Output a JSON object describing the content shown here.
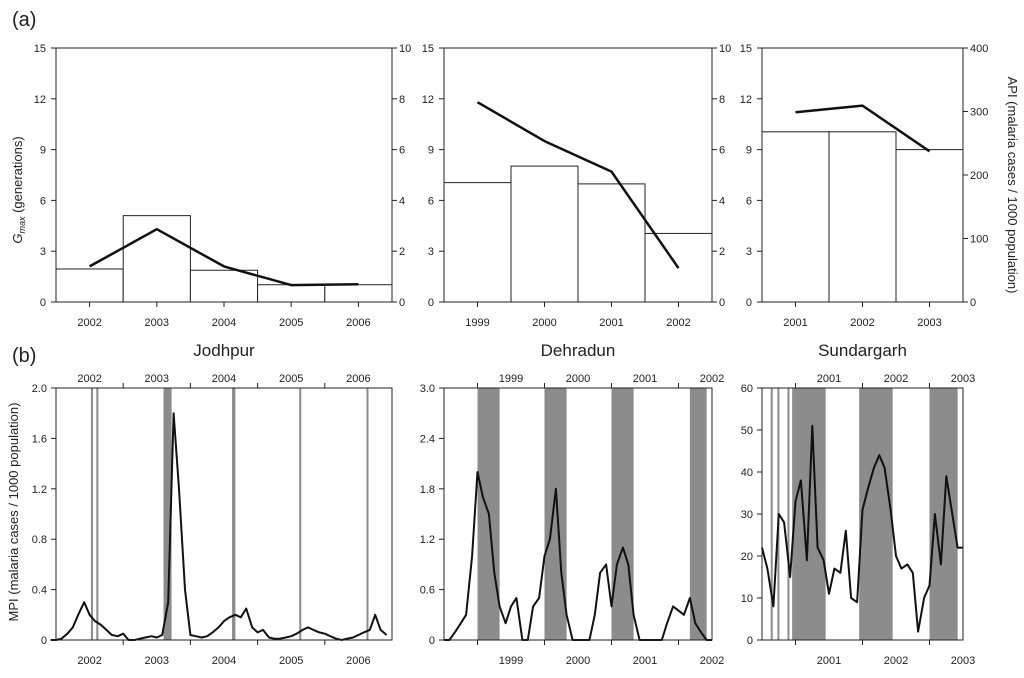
{
  "figure": {
    "panel_a_label": "(a)",
    "panel_b_label": "(b)",
    "gmax_label_main": "G",
    "gmax_label_sub": "max",
    "gmax_label_rest": " (generations)",
    "api_axis_label": "API (malaria cases / 1000 population)",
    "mpi_axis_label": "MPI (malaria cases / 1000 population)"
  },
  "chart_data": [
    {
      "id": "a-jodhpur",
      "type": "bar",
      "panel": "(a)",
      "categories": [
        "2002",
        "2003",
        "2004",
        "2005",
        "2006"
      ],
      "series": [
        {
          "name": "API (bars, right axis)",
          "axis": "right",
          "values": [
            1.3,
            3.4,
            1.25,
            0.68,
            0.68
          ]
        },
        {
          "name": "Gmax (line, left axis)",
          "axis": "left",
          "values": [
            2.1,
            4.3,
            2.1,
            1.0,
            1.05
          ]
        }
      ],
      "ylim_left": [
        0,
        15
      ],
      "yticks_left": [
        0,
        3,
        6,
        9,
        12,
        15
      ],
      "ylim_right": [
        0,
        10
      ],
      "yticks_right": [
        0,
        2,
        4,
        6,
        8,
        10
      ]
    },
    {
      "id": "a-dehradun",
      "type": "bar",
      "panel": "(a)",
      "categories": [
        "1999",
        "2000",
        "2001",
        "2002"
      ],
      "series": [
        {
          "name": "API (bars, right axis)",
          "axis": "right",
          "values": [
            4.7,
            5.35,
            4.65,
            2.7
          ]
        },
        {
          "name": "Gmax (line, left axis)",
          "axis": "left",
          "values": [
            11.8,
            9.5,
            7.7,
            2.0
          ]
        }
      ],
      "ylim_left": [
        0,
        15
      ],
      "yticks_left": [
        0,
        3,
        6,
        9,
        12,
        15
      ],
      "ylim_right": [
        0,
        10
      ],
      "yticks_right": [
        0,
        2,
        4,
        6,
        8,
        10
      ]
    },
    {
      "id": "a-sundargarh",
      "type": "bar",
      "panel": "(a)",
      "categories": [
        "2001",
        "2002",
        "2003"
      ],
      "series": [
        {
          "name": "API (bars, right axis)",
          "axis": "right",
          "values": [
            268,
            268,
            240
          ]
        },
        {
          "name": "Gmax (line, left axis)",
          "axis": "left",
          "values": [
            11.2,
            11.6,
            8.9
          ]
        }
      ],
      "ylim_left": [
        0,
        15
      ],
      "yticks_left": [
        0,
        3,
        6,
        9,
        12,
        15
      ],
      "ylim_right": [
        0,
        400
      ],
      "yticks_right": [
        0,
        100,
        200,
        300,
        400
      ]
    },
    {
      "id": "b-jodhpur",
      "type": "line",
      "panel": "(b)",
      "title": "Jodhpur",
      "x_range": [
        2002,
        2007
      ],
      "year_labels": [
        "2002",
        "2003",
        "2004",
        "2005",
        "2006"
      ],
      "ylim": [
        0,
        2.0
      ],
      "yticks": [
        "0",
        "0.4",
        "0.8",
        "1.2",
        "1.6",
        "2.0"
      ],
      "x": [
        2001.92,
        2002.0,
        2002.08,
        2002.17,
        2002.25,
        2002.33,
        2002.42,
        2002.5,
        2002.58,
        2002.67,
        2002.75,
        2002.83,
        2002.92,
        2003.0,
        2003.08,
        2003.17,
        2003.25,
        2003.33,
        2003.42,
        2003.5,
        2003.58,
        2003.67,
        2003.75,
        2003.83,
        2003.92,
        2004.0,
        2004.08,
        2004.17,
        2004.25,
        2004.33,
        2004.42,
        2004.5,
        2004.58,
        2004.67,
        2004.75,
        2004.83,
        2004.92,
        2005.0,
        2005.08,
        2005.17,
        2005.25,
        2005.33,
        2005.42,
        2005.5,
        2005.58,
        2005.67,
        2005.75,
        2005.83,
        2005.92,
        2006.0,
        2006.08,
        2006.17,
        2006.25,
        2006.33,
        2006.42,
        2006.5,
        2006.58,
        2006.67,
        2006.75,
        2006.83,
        2006.92
      ],
      "y": [
        0,
        0,
        0.01,
        0.05,
        0.1,
        0.2,
        0.3,
        0.2,
        0.15,
        0.12,
        0.08,
        0.04,
        0.03,
        0.05,
        0,
        0,
        0.01,
        0.02,
        0.03,
        0.02,
        0.04,
        0.3,
        1.8,
        1.2,
        0.4,
        0.04,
        0.03,
        0.02,
        0.03,
        0.06,
        0.1,
        0.15,
        0.18,
        0.2,
        0.18,
        0.25,
        0.1,
        0.06,
        0.08,
        0.02,
        0.01,
        0.01,
        0.02,
        0.03,
        0.05,
        0.08,
        0.1,
        0.08,
        0.06,
        0.05,
        0.03,
        0.01,
        0,
        0.01,
        0.02,
        0.04,
        0.06,
        0.08,
        0.2,
        0.08,
        0.04
      ],
      "shaded": [
        [
          2002.52,
          2002.55
        ],
        [
          2002.6,
          2002.63
        ],
        [
          2003.6,
          2003.72
        ],
        [
          2004.62,
          2004.67
        ],
        [
          2005.62,
          2005.64
        ],
        [
          2006.62,
          2006.65
        ]
      ]
    },
    {
      "id": "b-dehradun",
      "type": "line",
      "panel": "(b)",
      "title": "Dehradun",
      "x_range": [
        1998.5,
        2002.5
      ],
      "year_labels": [
        "1999",
        "2000",
        "2001",
        "2002"
      ],
      "ylim": [
        0,
        3.0
      ],
      "yticks": [
        "0",
        "0.6",
        "1.2",
        "1.8",
        "2.4",
        "3.0"
      ],
      "x": [
        1998.5,
        1998.58,
        1998.67,
        1998.75,
        1998.83,
        1998.92,
        1999.0,
        1999.08,
        1999.17,
        1999.25,
        1999.33,
        1999.42,
        1999.5,
        1999.58,
        1999.67,
        1999.75,
        1999.83,
        1999.92,
        2000.0,
        2000.08,
        2000.17,
        2000.25,
        2000.33,
        2000.42,
        2000.5,
        2000.58,
        2000.67,
        2000.75,
        2000.83,
        2000.92,
        2001.0,
        2001.08,
        2001.17,
        2001.25,
        2001.33,
        2001.42,
        2001.5,
        2001.58,
        2001.67,
        2001.75,
        2001.83,
        2001.92,
        2002.0,
        2002.08,
        2002.17,
        2002.25,
        2002.33,
        2002.42,
        2002.5
      ],
      "y": [
        0,
        0,
        0.1,
        0.2,
        0.3,
        1.0,
        2.0,
        1.7,
        1.5,
        0.8,
        0.4,
        0.2,
        0.4,
        0.5,
        0,
        0,
        0.4,
        0.5,
        1.0,
        1.2,
        1.8,
        0.8,
        0.3,
        0,
        0,
        0,
        0,
        0.3,
        0.8,
        0.9,
        0.4,
        0.9,
        1.1,
        0.9,
        0.3,
        0,
        0,
        0,
        0,
        0,
        0.2,
        0.4,
        0.35,
        0.3,
        0.5,
        0.2,
        0.1,
        0,
        0
      ],
      "shaded": [
        [
          1999.0,
          1999.33
        ],
        [
          2000.0,
          2000.33
        ],
        [
          2001.0,
          2001.33
        ],
        [
          2002.17,
          2002.42
        ]
      ]
    },
    {
      "id": "b-sundargarh",
      "type": "line",
      "panel": "(b)",
      "title": "Sundargarh",
      "x_range": [
        2000.5,
        2003.5
      ],
      "year_labels": [
        "2001",
        "2002",
        "2003"
      ],
      "ylim": [
        0,
        60
      ],
      "yticks": [
        "0",
        "10",
        "20",
        "30",
        "40",
        "50",
        "60"
      ],
      "x": [
        2000.5,
        2000.58,
        2000.67,
        2000.75,
        2000.83,
        2000.92,
        2001.0,
        2001.08,
        2001.17,
        2001.25,
        2001.33,
        2001.42,
        2001.5,
        2001.58,
        2001.67,
        2001.75,
        2001.83,
        2001.92,
        2002.0,
        2002.08,
        2002.17,
        2002.25,
        2002.33,
        2002.42,
        2002.5,
        2002.58,
        2002.67,
        2002.75,
        2002.83,
        2002.92,
        2003.0,
        2003.08,
        2003.17,
        2003.25,
        2003.33,
        2003.42,
        2003.5
      ],
      "y": [
        22,
        17,
        8,
        30,
        28,
        15,
        33,
        38,
        19,
        51,
        22,
        19,
        11,
        17,
        16,
        26,
        10,
        9,
        31,
        36,
        41,
        44,
        41,
        31,
        20,
        17,
        18,
        16,
        2,
        10,
        13,
        30,
        18,
        39,
        31,
        22,
        22
      ],
      "shaded": [
        [
          2000.63,
          2000.66
        ],
        [
          2000.73,
          2000.75
        ],
        [
          2000.88,
          2000.9
        ],
        [
          2000.95,
          2001.45
        ],
        [
          2001.95,
          2002.45
        ],
        [
          2003.0,
          2003.42
        ]
      ]
    }
  ]
}
